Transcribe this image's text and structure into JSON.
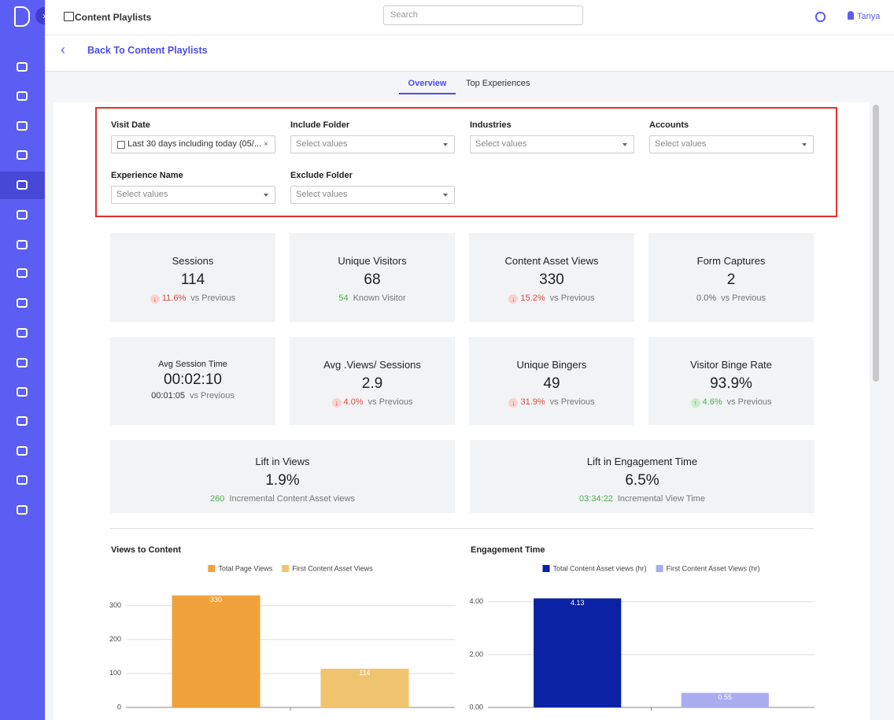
{
  "header": {
    "title": "Content Playlists",
    "search_placeholder": "Search",
    "user": "Tanya"
  },
  "back_link": "Back To Content Playlists",
  "tabs": {
    "items": [
      "Overview",
      "Top Experiences"
    ],
    "active": 0
  },
  "filters": [
    {
      "label": "Visit Date",
      "value": "Last 30 days including today (05/..."
    },
    {
      "label": "Include Folder",
      "placeholder": "Select values"
    },
    {
      "label": "Industries",
      "placeholder": "Select values"
    },
    {
      "label": "Accounts",
      "placeholder": "Select values"
    },
    {
      "label": "Experience Name",
      "placeholder": "Select values"
    },
    {
      "label": "Exclude Folder",
      "placeholder": "Select values"
    }
  ],
  "kpis": [
    {
      "title": "Sessions",
      "value": "114",
      "delta": "11.6%",
      "note": "vs Previous",
      "arrow": "down",
      "delta_color": "#e0473c"
    },
    {
      "title": "Unique Visitors",
      "value": "68",
      "delta": "54",
      "note": "Known Visitor",
      "delta_color": "#4caf50"
    },
    {
      "title": "Content Asset Views",
      "value": "330",
      "delta": "15.2%",
      "note": "vs Previous",
      "arrow": "down",
      "delta_color": "#e0473c"
    },
    {
      "title": "Form Captures",
      "value": "2",
      "delta": "0.0%",
      "note": "vs Previous",
      "delta_color": "#666666"
    },
    {
      "title": "Avg Session Time",
      "value": "00:02:10",
      "delta": "00:01:05",
      "note": "vs Previous",
      "delta_color": "#333333",
      "small_title": true
    },
    {
      "title": "Avg .Views/ Sessions",
      "value": "2.9",
      "delta": "4.0%",
      "note": "vs Previous",
      "arrow": "down",
      "delta_color": "#e0473c"
    },
    {
      "title": "Unique Bingers",
      "value": "49",
      "delta": "31.9%",
      "note": "vs Previous",
      "arrow": "down",
      "delta_color": "#e0473c"
    },
    {
      "title": "Visitor Binge Rate",
      "value": "93.9%",
      "delta": "4.6%",
      "note": "vs Previous",
      "arrow": "up",
      "delta_color": "#4caf50"
    },
    {
      "title": "Lift in Views",
      "value": "1.9%",
      "delta": "260",
      "note": "Incremental Content Asset views",
      "delta_color": "#4caf50",
      "wide": true
    },
    {
      "title": "Lift in Engagement Time",
      "value": "6.5%",
      "delta": "03:34:22",
      "note": "Incremental View Time",
      "delta_color": "#4caf50",
      "wide": true
    }
  ],
  "charts": [
    {
      "type": "bar",
      "title": "Views to Content",
      "categories": [
        null
      ],
      "series": [
        {
          "name": "Total Page Views",
          "color": "#f0a23b",
          "values": [
            330
          ]
        },
        {
          "name": "First Content Asset Views",
          "color": "#f0c46f",
          "values": [
            114
          ]
        }
      ],
      "ylim": [
        0,
        350
      ],
      "yticks": [
        0,
        100,
        200,
        300
      ],
      "grid": true
    },
    {
      "type": "bar",
      "title": "Engagement Time",
      "categories": [
        null
      ],
      "series": [
        {
          "name": "Total Content Asset views (hr)",
          "color": "#0a22a3",
          "values": [
            4.13
          ]
        },
        {
          "name": "First Content Asset Views (hr)",
          "color": "#a9acef",
          "values": [
            0.55
          ]
        }
      ],
      "ylim": [
        0,
        4.5
      ],
      "yticks": [
        {
          "value": 0,
          "label": "0.00"
        },
        {
          "value": 2,
          "label": "2.00"
        },
        {
          "value": 4,
          "label": "4.00"
        }
      ],
      "grid": true
    }
  ]
}
